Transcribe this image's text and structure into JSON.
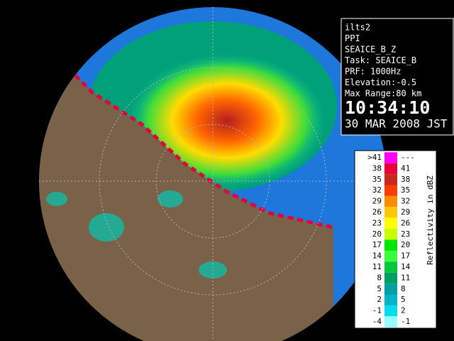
{
  "info_panel": {
    "lines": [
      "ilts2",
      "PPI",
      "SEAICE_B_Z",
      "Task: SEAICE_B",
      "PRF: 1000Hz",
      "Elevation:-0.5",
      "Max Range:80 km"
    ],
    "time": "10:34:10",
    "date": "30 MAR 2008 JST"
  },
  "legend": {
    "title": "Reflectivity in dBZ",
    "rows": [
      {
        "low": ">41",
        "high": "---",
        "color": "#ff00ff"
      },
      {
        "low": "38",
        "high": "41",
        "color": "#e8003c"
      },
      {
        "low": "35",
        "high": "38",
        "color": "#c8281e"
      },
      {
        "low": "32",
        "high": "35",
        "color": "#ff3c00"
      },
      {
        "low": "29",
        "high": "32",
        "color": "#ff8c00"
      },
      {
        "low": "26",
        "high": "29",
        "color": "#ffc800"
      },
      {
        "low": "23",
        "high": "26",
        "color": "#ffff00"
      },
      {
        "low": "20",
        "high": "23",
        "color": "#c8ff00"
      },
      {
        "low": "17",
        "high": "20",
        "color": "#00e600"
      },
      {
        "low": "14",
        "high": "17",
        "color": "#3cff3c"
      },
      {
        "low": "11",
        "high": "14",
        "color": "#00c83c"
      },
      {
        "low": "8",
        "high": "11",
        "color": "#00a064"
      },
      {
        "low": "5",
        "high": "8",
        "color": "#00a0a0"
      },
      {
        "low": "2",
        "high": "5",
        "color": "#00b4c8"
      },
      {
        "low": "-1",
        "high": "2",
        "color": "#00dcf0"
      },
      {
        "low": "-4",
        "high": "-1",
        "color": "#96ffff"
      }
    ]
  }
}
